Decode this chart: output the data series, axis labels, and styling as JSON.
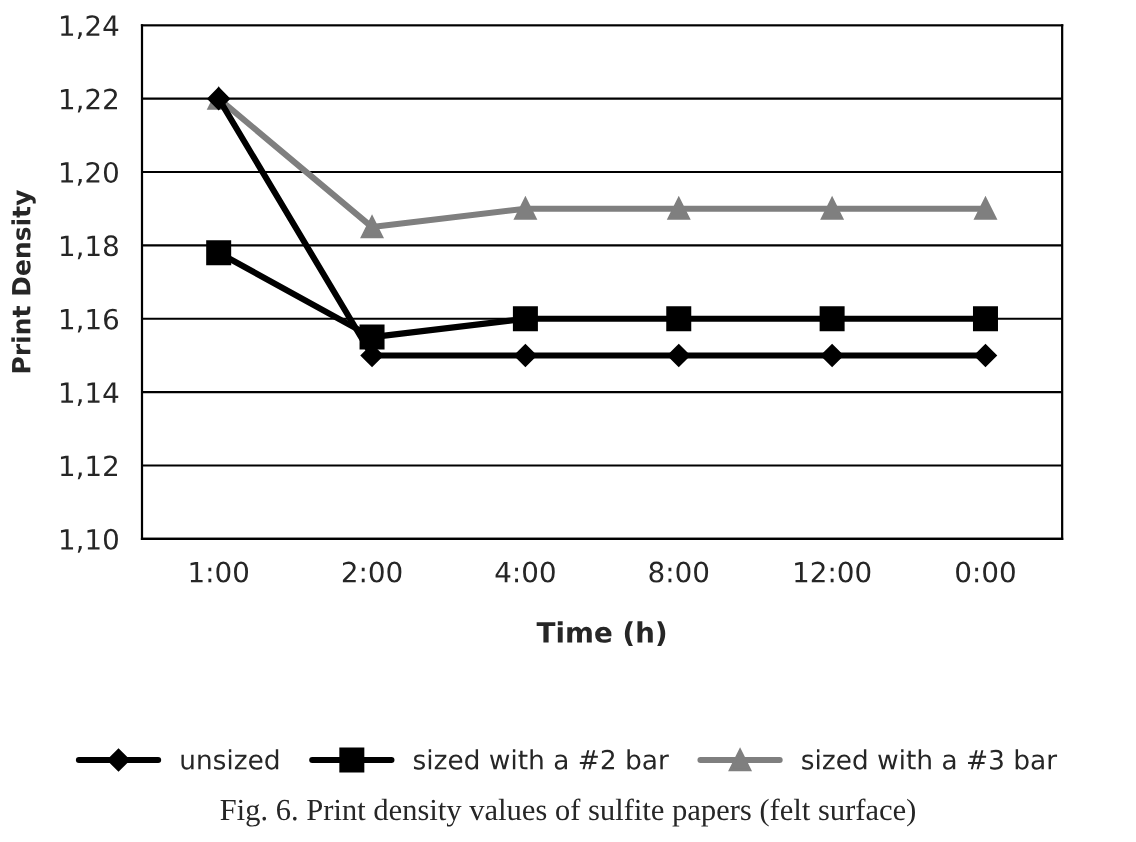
{
  "chart_data": {
    "type": "line",
    "xlabel": "Time (h)",
    "ylabel": "Print Density",
    "categories": [
      "1:00",
      "2:00",
      "4:00",
      "8:00",
      "12:00",
      "0:00"
    ],
    "series": [
      {
        "name": "unsized",
        "color": "#000000",
        "marker": "diamond",
        "values": [
          1.22,
          1.15,
          1.15,
          1.15,
          1.15,
          1.15
        ]
      },
      {
        "name": "sized with a #2 bar",
        "color": "#000000",
        "marker": "square",
        "values": [
          1.178,
          1.155,
          1.16,
          1.16,
          1.16,
          1.16
        ]
      },
      {
        "name": "sized with a #3 bar",
        "color": "#7f7f7f",
        "marker": "triangle",
        "values": [
          1.22,
          1.185,
          1.19,
          1.19,
          1.19,
          1.19
        ]
      }
    ],
    "ylim": [
      1.1,
      1.24
    ],
    "yticks": [
      {
        "value": 1.1,
        "label": "1,10"
      },
      {
        "value": 1.12,
        "label": "1,12"
      },
      {
        "value": 1.14,
        "label": "1,14"
      },
      {
        "value": 1.16,
        "label": "1,16"
      },
      {
        "value": 1.18,
        "label": "1,18"
      },
      {
        "value": 1.2,
        "label": "1,20"
      },
      {
        "value": 1.22,
        "label": "1,22"
      },
      {
        "value": 1.24,
        "label": "1,24"
      }
    ],
    "grid": "y",
    "legend": "bottom",
    "line_style": "solid",
    "annotations": [
      "Fig. 6. Print density values of sulfite papers (felt surface)"
    ]
  }
}
